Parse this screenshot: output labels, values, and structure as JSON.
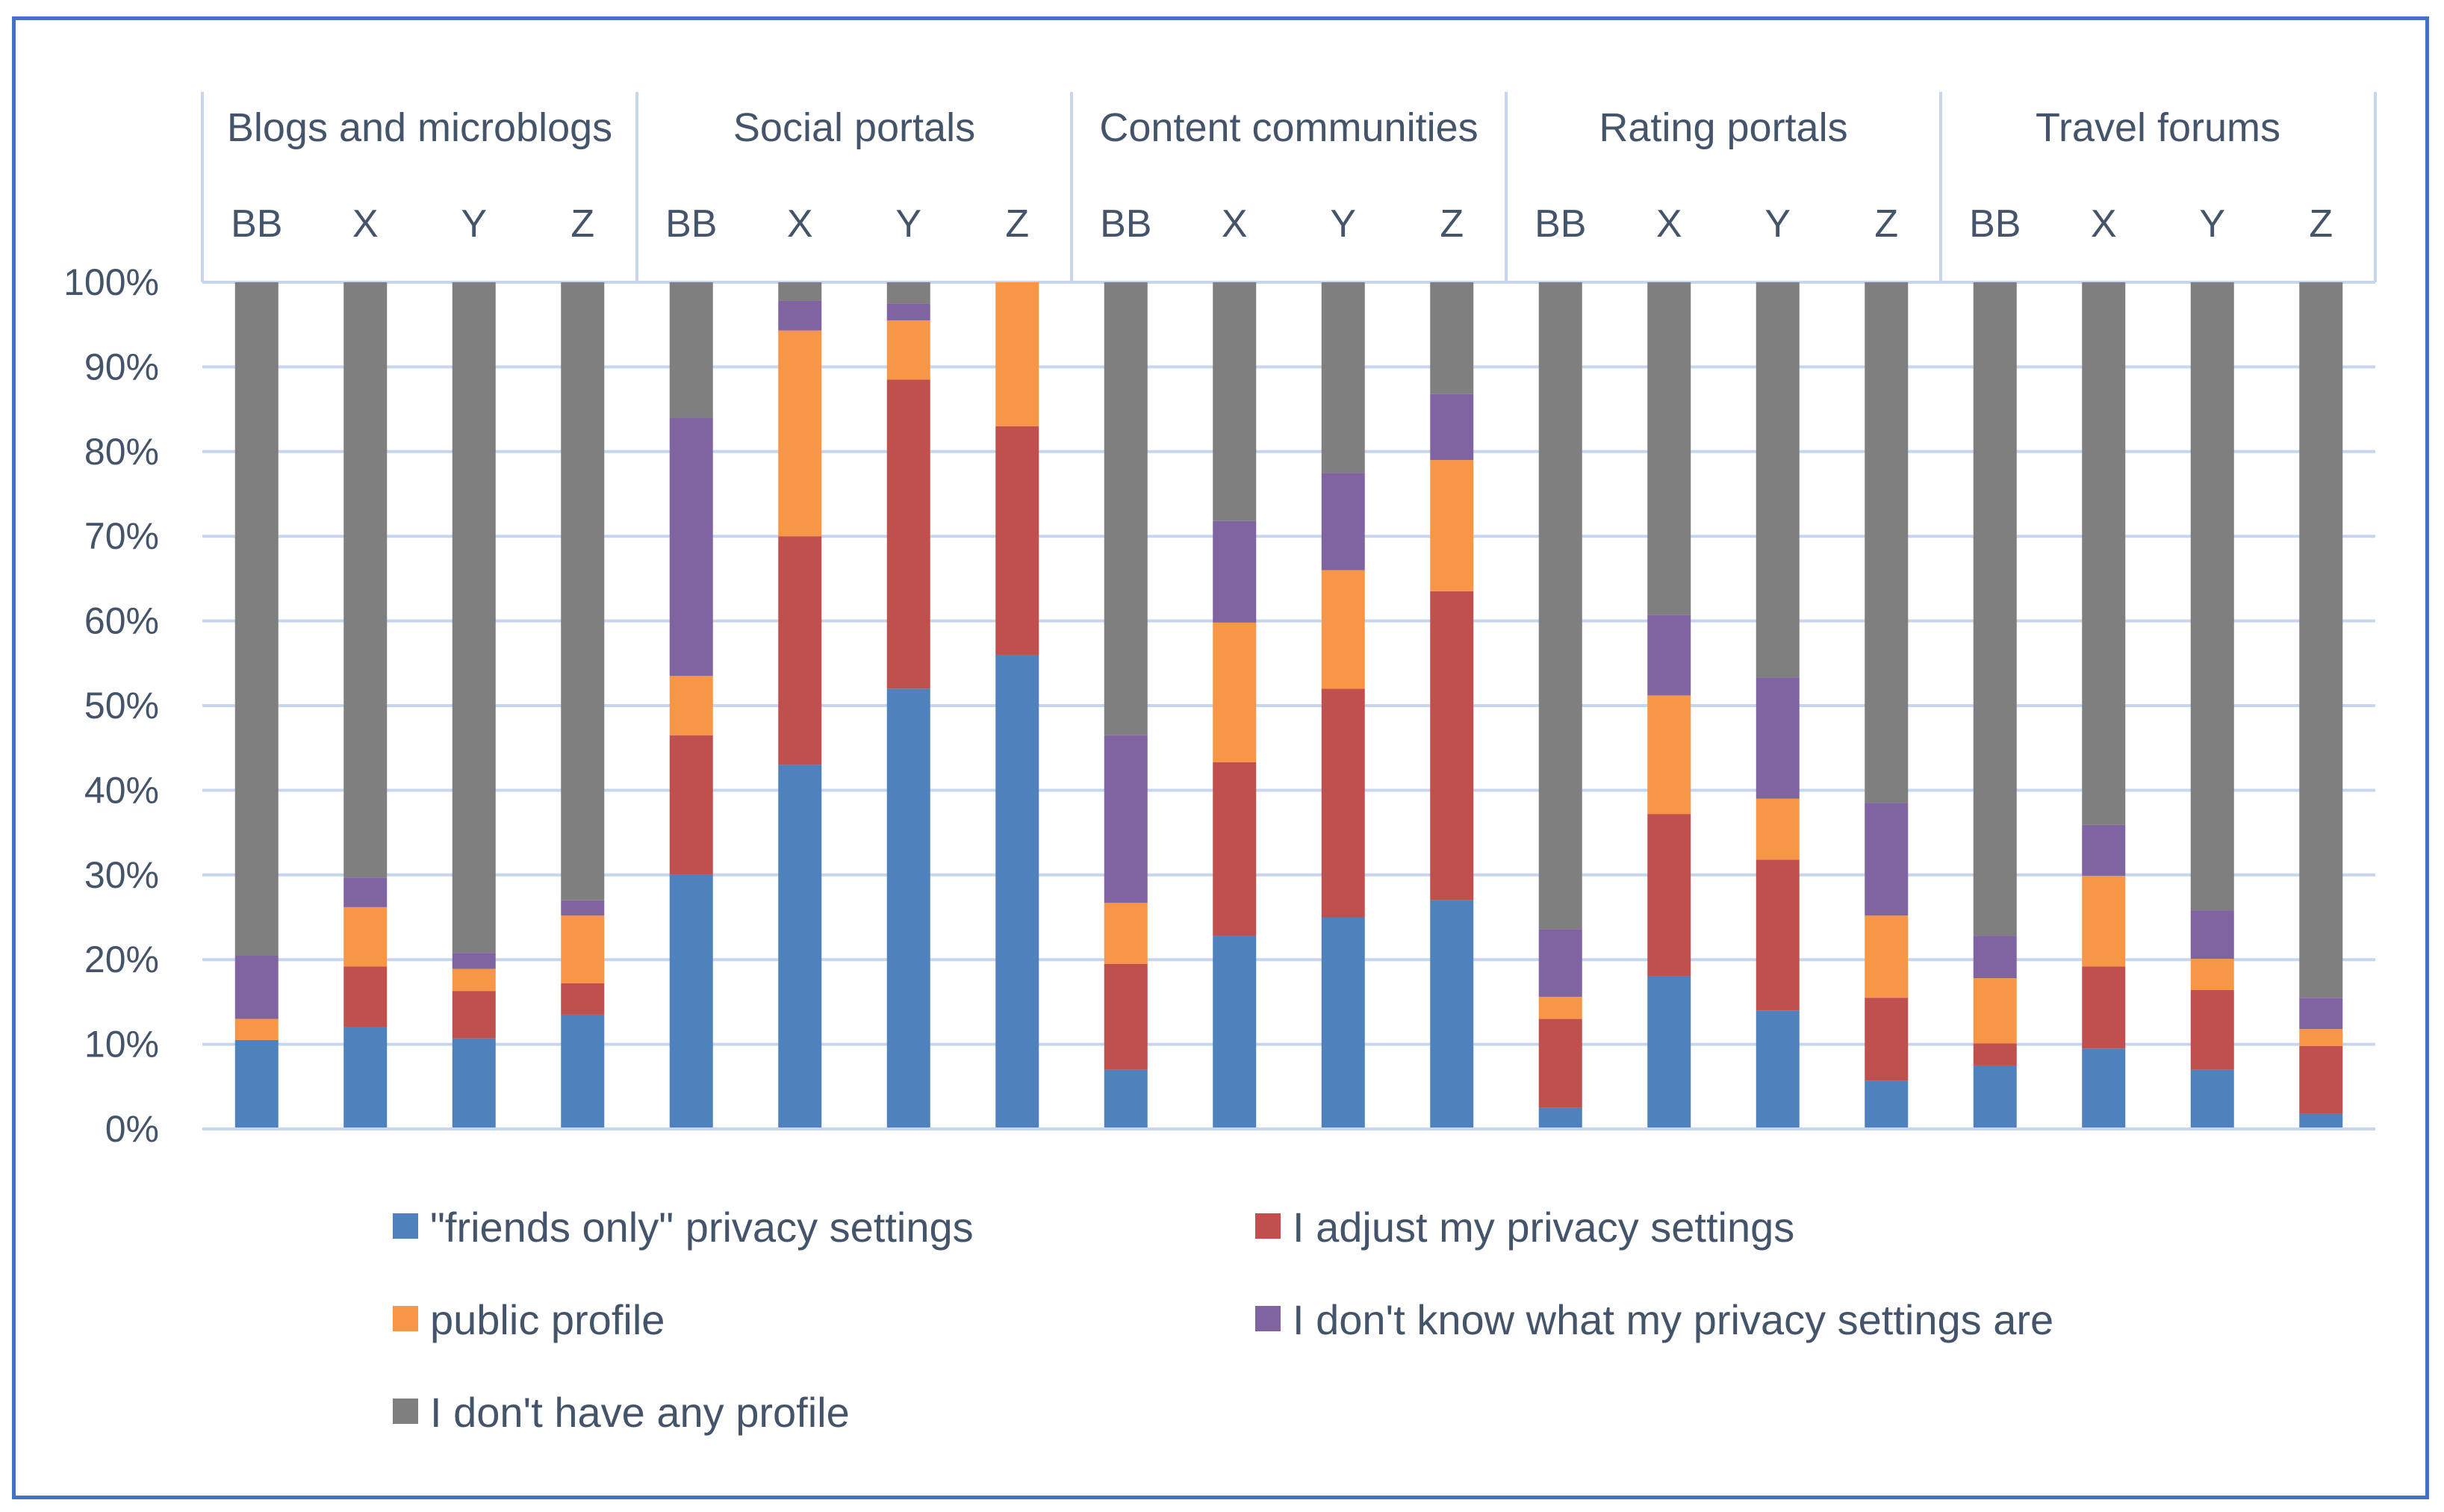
{
  "chart_data": {
    "type": "bar",
    "stacked": true,
    "title": "",
    "xlabel": "",
    "ylabel": "",
    "ylim": [
      0,
      100
    ],
    "y_ticks": [
      "0%",
      "10%",
      "20%",
      "30%",
      "40%",
      "50%",
      "60%",
      "70%",
      "80%",
      "90%",
      "100%"
    ],
    "groups": [
      {
        "name": "Blogs and microblogs",
        "categories": [
          "BB",
          "X",
          "Y",
          "Z"
        ]
      },
      {
        "name": "Social portals",
        "categories": [
          "BB",
          "X",
          "Y",
          "Z"
        ]
      },
      {
        "name": "Content communities",
        "categories": [
          "BB",
          "X",
          "Y",
          "Z"
        ]
      },
      {
        "name": "Rating portals",
        "categories": [
          "BB",
          "X",
          "Y",
          "Z"
        ]
      },
      {
        "name": "Travel forums",
        "categories": [
          "BB",
          "X",
          "Y",
          "Z"
        ]
      }
    ],
    "series": [
      {
        "name": "\"friends only\" privacy settings",
        "color": "#4f81bd",
        "values": [
          10.5,
          12,
          10.7,
          13.5,
          30,
          43,
          52,
          56,
          7,
          22.8,
          25,
          27,
          2.5,
          18,
          14,
          5.7,
          7.5,
          9.5,
          7,
          1.8
        ]
      },
      {
        "name": "I adjust my privacy settings",
        "color": "#c0504d",
        "values": [
          0,
          7.2,
          5.6,
          3.7,
          16.5,
          27,
          36.5,
          27,
          12.5,
          20.5,
          27,
          36.5,
          10.5,
          19.2,
          17.8,
          9.8,
          2.6,
          9.7,
          9.4,
          8
        ]
      },
      {
        "name": "public profile",
        "color": "#f79646",
        "values": [
          2.5,
          7,
          2.6,
          8,
          7,
          24.3,
          7,
          17,
          7.2,
          16.5,
          14,
          15.5,
          2.6,
          14,
          7.2,
          9.7,
          7.7,
          10.7,
          3.7,
          2
        ]
      },
      {
        "name": "I don't know what my privacy settings are",
        "color": "#8064a2",
        "values": [
          7.5,
          3.5,
          1.9,
          1.8,
          30.5,
          3.5,
          2,
          0,
          19.8,
          12,
          11.5,
          7.8,
          8,
          9.5,
          14.3,
          13.3,
          5,
          6,
          5.7,
          3.7
        ]
      },
      {
        "name": "I don't have any profile",
        "color": "#7f7f7f",
        "values": [
          79.5,
          70.3,
          79.2,
          73,
          16,
          2.2,
          2.5,
          0,
          53.5,
          28.2,
          22.5,
          13.2,
          76.4,
          39.3,
          46.7,
          61.5,
          77.2,
          64.1,
          74.2,
          84.5
        ]
      }
    ]
  }
}
